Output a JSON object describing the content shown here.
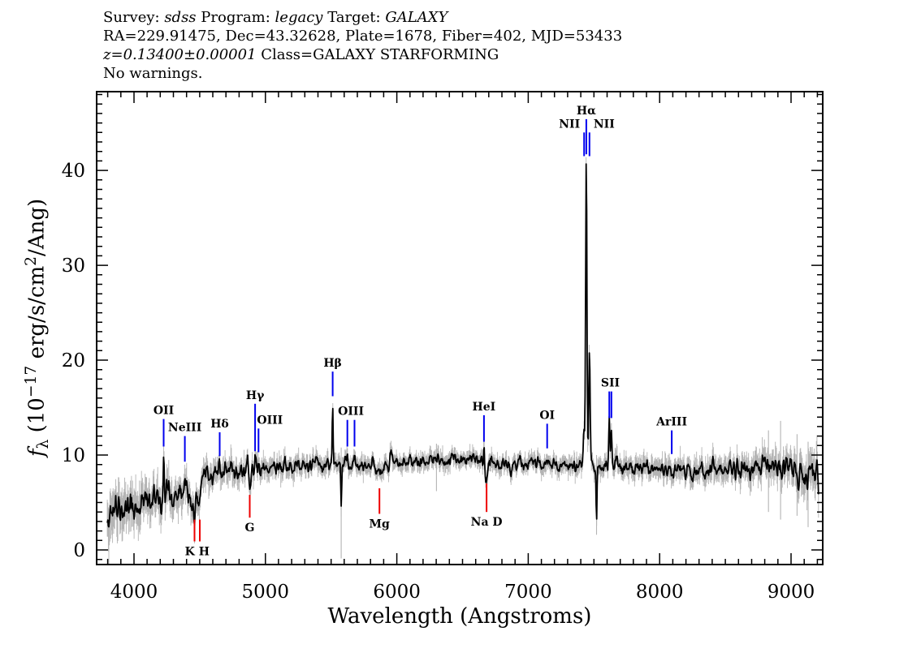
{
  "header": {
    "line1_segments": [
      {
        "t": "Survey: ",
        "style": "normal"
      },
      {
        "t": "sdss",
        "style": "italic"
      },
      {
        "t": " Program: ",
        "style": "normal"
      },
      {
        "t": "legacy",
        "style": "italic"
      },
      {
        "t": " Target: ",
        "style": "normal"
      },
      {
        "t": "GALAXY",
        "style": "italic"
      }
    ],
    "line2": "RA=229.91475, Dec=43.32628, Plate=1678, Fiber=402, MJD=53433",
    "line3_segments": [
      {
        "t": "z=0.13400±0.00001",
        "style": "italic"
      },
      {
        "t": " Class=GALAXY STARFORMING",
        "style": "normal"
      }
    ],
    "line4": "No warnings."
  },
  "chart_data": {
    "type": "line",
    "xlabel": "Wavelength (Angstroms)",
    "ylabel": "f_lambda (10^-17 erg/s/cm^2/Ang)",
    "ylabel_parts": [
      {
        "t": "f",
        "style": "italic"
      },
      {
        "t": "λ",
        "style": "sub"
      },
      {
        "t": " (10",
        "style": "normal"
      },
      {
        "t": "−17",
        "style": "sup"
      },
      {
        "t": " erg/s/cm",
        "style": "normal"
      },
      {
        "t": "2",
        "style": "sup"
      },
      {
        "t": "/Ang)",
        "style": "normal"
      }
    ],
    "xlim": [
      3716,
      9241
    ],
    "ylim": [
      -1.54,
      48.3
    ],
    "xticks": [
      4000,
      5000,
      6000,
      7000,
      8000,
      9000
    ],
    "xminor_step": 100,
    "yticks": [
      0,
      10,
      20,
      30,
      40
    ],
    "yminor_step": 1,
    "x_start": 3797,
    "x_end": 9212,
    "sample_step": 4,
    "noise_seed": 11,
    "continuum": [
      [
        3797,
        4.6
      ],
      [
        3860,
        4.0
      ],
      [
        3950,
        4.5
      ],
      [
        4100,
        5.0
      ],
      [
        4250,
        5.6
      ],
      [
        4400,
        5.8
      ],
      [
        4460,
        4.6
      ],
      [
        4520,
        6.8
      ],
      [
        4560,
        8.0
      ],
      [
        4700,
        8.2
      ],
      [
        4900,
        8.5
      ],
      [
        5100,
        8.8
      ],
      [
        5400,
        8.9
      ],
      [
        5700,
        9.0
      ],
      [
        6000,
        9.2
      ],
      [
        6300,
        9.4
      ],
      [
        6600,
        9.4
      ],
      [
        6900,
        9.2
      ],
      [
        7200,
        9.1
      ],
      [
        7450,
        9.0
      ],
      [
        7700,
        8.8
      ],
      [
        7950,
        8.6
      ],
      [
        8150,
        8.4
      ],
      [
        8350,
        8.4
      ],
      [
        8600,
        8.6
      ],
      [
        8800,
        8.8
      ],
      [
        8950,
        8.5
      ],
      [
        9100,
        8.0
      ],
      [
        9212,
        7.7
      ]
    ],
    "error_sigma": [
      [
        3797,
        1.6
      ],
      [
        4000,
        1.3
      ],
      [
        4300,
        1.1
      ],
      [
        4500,
        0.9
      ],
      [
        4800,
        0.75
      ],
      [
        5200,
        0.65
      ],
      [
        5600,
        0.6
      ],
      [
        6000,
        0.55
      ],
      [
        6500,
        0.55
      ],
      [
        7000,
        0.55
      ],
      [
        7400,
        0.6
      ],
      [
        7600,
        0.65
      ],
      [
        8000,
        0.7
      ],
      [
        8400,
        0.8
      ],
      [
        8700,
        0.9
      ],
      [
        9000,
        1.1
      ],
      [
        9212,
        1.3
      ]
    ],
    "emission_features": [
      [
        4226,
        5.4,
        3.5
      ],
      [
        4387,
        1.2,
        4
      ],
      [
        4652,
        1.0,
        4
      ],
      [
        4922,
        1.6,
        4
      ],
      [
        4948,
        0.5,
        3
      ],
      [
        5512,
        6.3,
        3.5
      ],
      [
        5624,
        0.9,
        3.5
      ],
      [
        5678,
        1.3,
        3.5
      ],
      [
        6663,
        1.9,
        3.5
      ],
      [
        7144,
        0.7,
        4
      ],
      [
        7425,
        3.5,
        5
      ],
      [
        7442,
        31.8,
        5
      ],
      [
        7466,
        12.3,
        5
      ],
      [
        7617,
        5.8,
        4.5
      ],
      [
        7633,
        4.2,
        4.5
      ],
      [
        8784,
        2.0,
        5
      ]
    ],
    "absorption_features": [
      [
        4461,
        1.4,
        8
      ],
      [
        4501,
        1.6,
        8
      ],
      [
        4881,
        1.4,
        10
      ],
      [
        5577,
        4.6,
        3.5
      ],
      [
        5868,
        1.7,
        18
      ],
      [
        6683,
        2.2,
        8
      ],
      [
        6870,
        1.2,
        8
      ],
      [
        7520,
        5.6,
        3.5
      ]
    ],
    "sky_spikes": [
      [
        5577,
        10.8,
        -0.9
      ],
      [
        6302,
        11.2,
        6.2
      ],
      [
        7520,
        10.0,
        1.6
      ],
      [
        8828,
        12.6,
        4.0
      ],
      [
        8920,
        13.6,
        3.2
      ],
      [
        9046,
        12.2,
        3.6
      ],
      [
        9130,
        11.4,
        2.4
      ]
    ],
    "annotations": [
      {
        "label": "OII",
        "kind": "em",
        "waves": [
          4226
        ],
        "tick_top": 13.8,
        "tick_bot": 10.9
      },
      {
        "label": "NeIII",
        "kind": "em",
        "waves": [
          4387
        ],
        "tick_top": 12.0,
        "tick_bot": 9.3
      },
      {
        "label": "Hδ",
        "kind": "em",
        "waves": [
          4652
        ],
        "tick_top": 12.4,
        "tick_bot": 9.9
      },
      {
        "label": "Hγ",
        "kind": "em",
        "waves": [
          4922
        ],
        "tick_top": 15.4,
        "tick_bot": 10.4
      },
      {
        "label": "OIII",
        "kind": "em",
        "waves": [
          4948
        ],
        "tick_top": 12.8,
        "tick_bot": 10.3,
        "dx": 14
      },
      {
        "label": "Hβ",
        "kind": "em",
        "waves": [
          5512
        ],
        "tick_top": 18.8,
        "tick_bot": 16.2
      },
      {
        "label": "OIII",
        "kind": "em",
        "waves": [
          5624,
          5678
        ],
        "tick_top": 13.7,
        "tick_bot": 10.9
      },
      {
        "label": "HeI",
        "kind": "em",
        "waves": [
          6663
        ],
        "tick_top": 14.2,
        "tick_bot": 11.4
      },
      {
        "label": "OI",
        "kind": "em",
        "waves": [
          7144
        ],
        "tick_top": 13.3,
        "tick_bot": 10.7
      },
      {
        "label": "NII",
        "kind": "em",
        "waves": [
          7425
        ],
        "tick_top": 44.0,
        "tick_bot": 41.5,
        "dx": -18
      },
      {
        "label": "Hα",
        "kind": "em",
        "waves": [
          7442
        ],
        "tick_top": 45.4,
        "tick_bot": 41.7
      },
      {
        "label": "NII",
        "kind": "em",
        "waves": [
          7466
        ],
        "tick_top": 44.0,
        "tick_bot": 41.5,
        "dx": 18
      },
      {
        "label": "SII",
        "kind": "em",
        "waves": [
          7617,
          7633
        ],
        "tick_top": 16.7,
        "tick_bot": 13.9
      },
      {
        "label": "ArIII",
        "kind": "em",
        "waves": [
          8092
        ],
        "tick_top": 12.6,
        "tick_bot": 10.1
      },
      {
        "label": "K H",
        "kind": "abs",
        "waves": [
          4461,
          4501
        ],
        "tick_top": 3.2,
        "tick_bot": 0.9
      },
      {
        "label": "G",
        "kind": "abs",
        "waves": [
          4881
        ],
        "tick_top": 5.8,
        "tick_bot": 3.4
      },
      {
        "label": "Mg",
        "kind": "abs",
        "waves": [
          5868
        ],
        "tick_top": 6.5,
        "tick_bot": 3.8
      },
      {
        "label": "Na D",
        "kind": "abs",
        "waves": [
          6683
        ],
        "tick_top": 7.0,
        "tick_bot": 4.0
      }
    ],
    "colors": {
      "spectrum": "#000000",
      "error": "#b4b4b4",
      "emission": "#0000ee",
      "absorption": "#ee0000",
      "frame": "#000000"
    }
  }
}
